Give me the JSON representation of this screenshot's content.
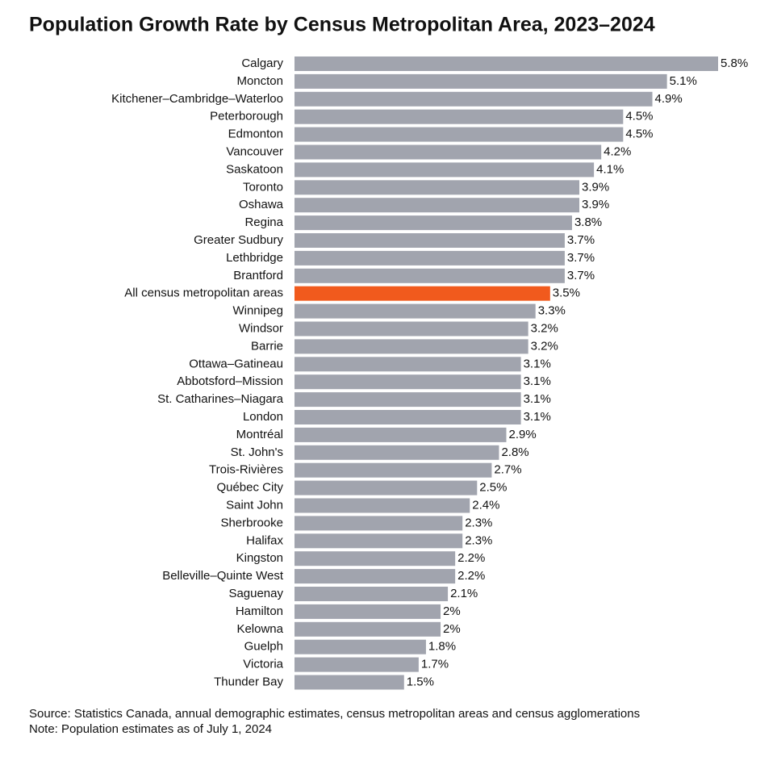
{
  "chart_data": {
    "type": "bar",
    "orientation": "horizontal",
    "title": "Population Growth Rate by Census Metropolitan Area, 2023–2024",
    "categories": [
      "Calgary",
      "Moncton",
      "Kitchener–Cambridge–Waterloo",
      "Peterborough",
      "Edmonton",
      "Vancouver",
      "Saskatoon",
      "Toronto",
      "Oshawa",
      "Regina",
      "Greater Sudbury",
      "Lethbridge",
      "Brantford",
      "All census metropolitan areas",
      "Winnipeg",
      "Windsor",
      "Barrie",
      "Ottawa–Gatineau",
      "Abbotsford–Mission",
      "St. Catharines–Niagara",
      "London",
      "Montréal",
      "St. John's",
      "Trois-Rivières",
      "Québec City",
      "Saint John",
      "Sherbrooke",
      "Halifax",
      "Kingston",
      "Belleville–Quinte West",
      "Saguenay",
      "Hamilton",
      "Kelowna",
      "Guelph",
      "Victoria",
      "Thunder Bay"
    ],
    "values": [
      5.8,
      5.1,
      4.9,
      4.5,
      4.5,
      4.2,
      4.1,
      3.9,
      3.9,
      3.8,
      3.7,
      3.7,
      3.7,
      3.5,
      3.3,
      3.2,
      3.2,
      3.1,
      3.1,
      3.1,
      3.1,
      2.9,
      2.8,
      2.7,
      2.5,
      2.4,
      2.3,
      2.3,
      2.2,
      2.2,
      2.1,
      2,
      2,
      1.8,
      1.7,
      1.5
    ],
    "value_labels": [
      "5.8%",
      "5.1%",
      "4.9%",
      "4.5%",
      "4.5%",
      "4.2%",
      "4.1%",
      "3.9%",
      "3.9%",
      "3.8%",
      "3.7%",
      "3.7%",
      "3.7%",
      "3.5%",
      "3.3%",
      "3.2%",
      "3.2%",
      "3.1%",
      "3.1%",
      "3.1%",
      "3.1%",
      "2.9%",
      "2.8%",
      "2.7%",
      "2.5%",
      "2.4%",
      "2.3%",
      "2.3%",
      "2.2%",
      "2.2%",
      "2.1%",
      "2%",
      "2%",
      "1.8%",
      "1.7%",
      "1.5%"
    ],
    "colors": [
      "#a1a4ae",
      "#a1a4ae",
      "#a1a4ae",
      "#a1a4ae",
      "#a1a4ae",
      "#a1a4ae",
      "#a1a4ae",
      "#a1a4ae",
      "#a1a4ae",
      "#a1a4ae",
      "#a1a4ae",
      "#a1a4ae",
      "#a1a4ae",
      "#f15a1d",
      "#a1a4ae",
      "#a1a4ae",
      "#a1a4ae",
      "#a1a4ae",
      "#a1a4ae",
      "#a1a4ae",
      "#a1a4ae",
      "#a1a4ae",
      "#a1a4ae",
      "#a1a4ae",
      "#a1a4ae",
      "#a1a4ae",
      "#a1a4ae",
      "#a1a4ae",
      "#a1a4ae",
      "#a1a4ae",
      "#a1a4ae",
      "#a1a4ae",
      "#a1a4ae",
      "#a1a4ae",
      "#a1a4ae",
      "#a1a4ae"
    ],
    "source": "Source: Statistics Canada, annual demographic estimates, census metropolitan areas and census agglomerations",
    "note": "Note: Population estimates as of July 1, 2024"
  }
}
